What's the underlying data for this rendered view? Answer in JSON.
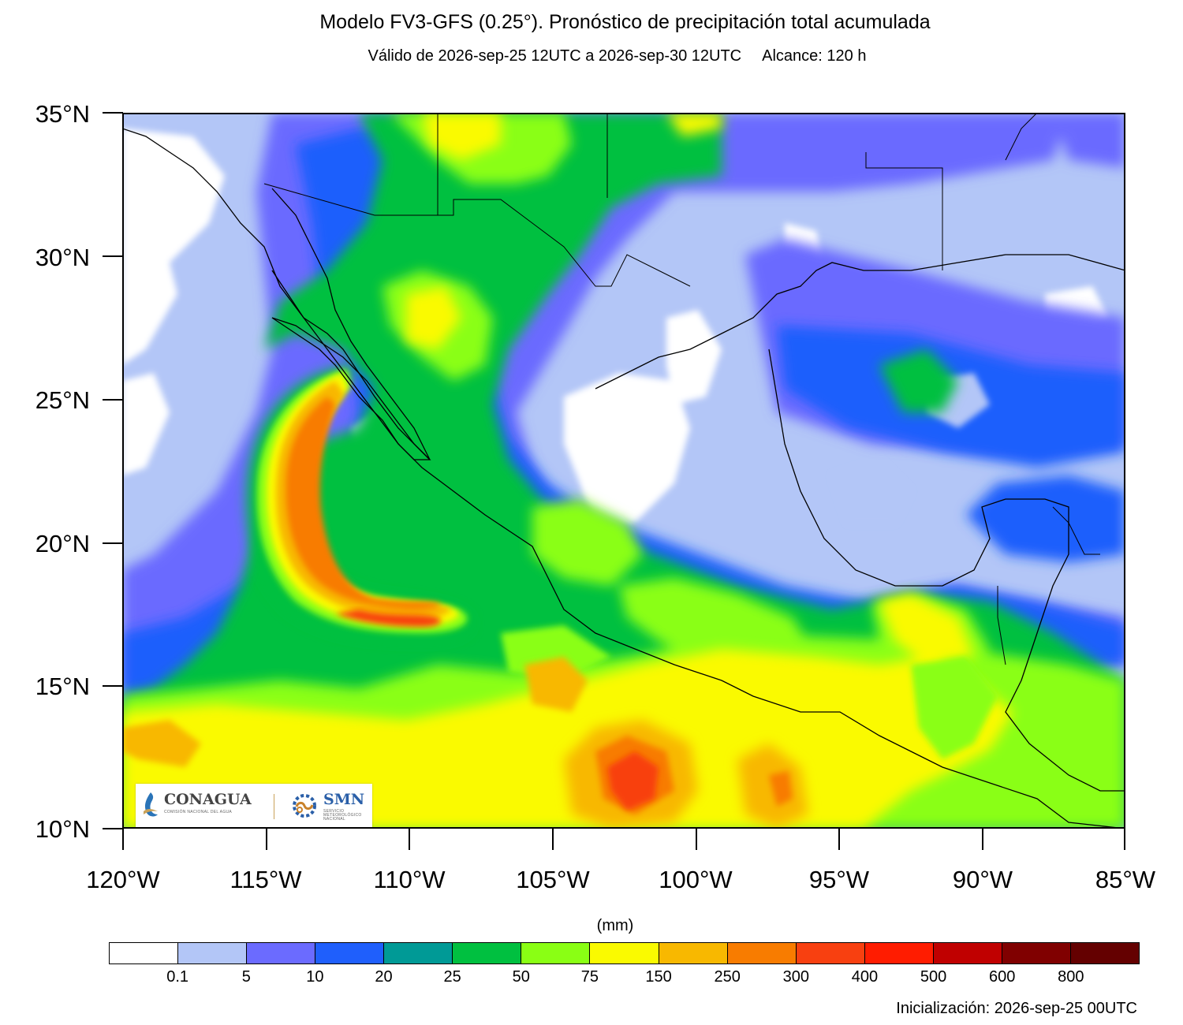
{
  "title": "Modelo FV3-GFS (0.25°). Pronóstico de precipitación total acumulada",
  "subtitle": "Válido de 2026-sep-25 12UTC a 2026-sep-30 12UTC",
  "subtitle_range": "Alcance: 120 h",
  "map": {
    "lat_range": [
      10,
      35
    ],
    "lon_range": [
      -120,
      -85
    ],
    "lat_ticks": [
      "35°N",
      "30°N",
      "25°N",
      "20°N",
      "15°N",
      "10°N"
    ],
    "lon_ticks": [
      "120°W",
      "115°W",
      "110°W",
      "105°W",
      "100°W",
      "95°W",
      "90°W",
      "85°W"
    ]
  },
  "legend": {
    "units": "(mm)",
    "levels": [
      "0.1",
      "5",
      "10",
      "20",
      "25",
      "50",
      "75",
      "150",
      "250",
      "300",
      "400",
      "500",
      "600",
      "800"
    ],
    "colors": [
      "#ffffff",
      "#b3c6f7",
      "#6b6bff",
      "#1f5ffc",
      "#009a96",
      "#00c040",
      "#8aff14",
      "#fafa00",
      "#f8b800",
      "#f87c00",
      "#f84010",
      "#ff1c00",
      "#c00000",
      "#800000",
      "#640000"
    ]
  },
  "init_text": "Inicialización: 2026-sep-25 00UTC",
  "logos": {
    "conagua": "CONAGUA",
    "conagua_sub": "COMISIÓN NACIONAL DEL AGUA",
    "smn": "SMN",
    "smn_sub": "SERVICIO METEOROLÓGICO NACIONAL"
  }
}
